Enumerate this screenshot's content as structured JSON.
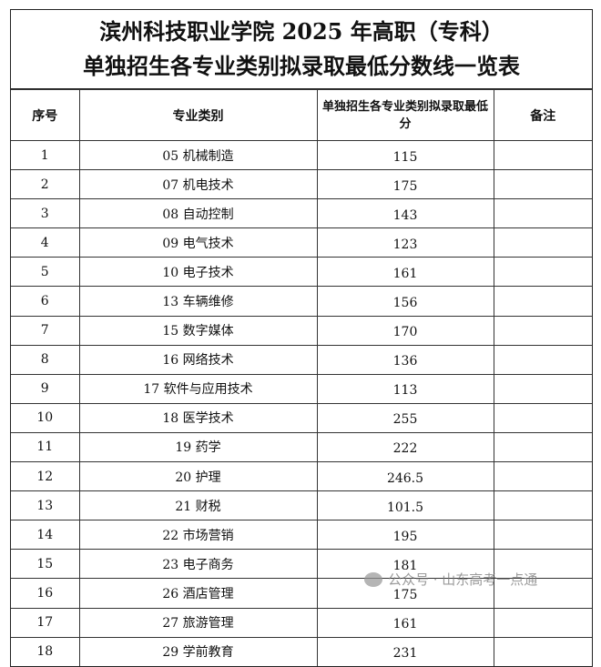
{
  "title_line1": "滨州科技职业学院 2025 年高职（专科）",
  "title_line2": "单独招生各专业类别拟录取最低分数线一览表",
  "headers": {
    "index": "序号",
    "category": "专业类别",
    "score": "单独招生各专业类别拟录取最低分",
    "note": "备注"
  },
  "rows": [
    {
      "index": "1",
      "category": "05 机械制造",
      "score": "115",
      "note": ""
    },
    {
      "index": "2",
      "category": "07 机电技术",
      "score": "175",
      "note": ""
    },
    {
      "index": "3",
      "category": "08 自动控制",
      "score": "143",
      "note": ""
    },
    {
      "index": "4",
      "category": "09 电气技术",
      "score": "123",
      "note": ""
    },
    {
      "index": "5",
      "category": "10 电子技术",
      "score": "161",
      "note": ""
    },
    {
      "index": "6",
      "category": "13 车辆维修",
      "score": "156",
      "note": ""
    },
    {
      "index": "7",
      "category": "15 数字媒体",
      "score": "170",
      "note": ""
    },
    {
      "index": "8",
      "category": "16 网络技术",
      "score": "136",
      "note": ""
    },
    {
      "index": "9",
      "category": "17 软件与应用技术",
      "score": "113",
      "note": ""
    },
    {
      "index": "10",
      "category": "18 医学技术",
      "score": "255",
      "note": ""
    },
    {
      "index": "11",
      "category": "19 药学",
      "score": "222",
      "note": ""
    },
    {
      "index": "12",
      "category": "20 护理",
      "score": "246.5",
      "note": ""
    },
    {
      "index": "13",
      "category": "21 财税",
      "score": "101.5",
      "note": ""
    },
    {
      "index": "14",
      "category": "22 市场营销",
      "score": "195",
      "note": ""
    },
    {
      "index": "15",
      "category": "23 电子商务",
      "score": "181",
      "note": ""
    },
    {
      "index": "16",
      "category": "26 酒店管理",
      "score": "175",
      "note": ""
    },
    {
      "index": "17",
      "category": "27 旅游管理",
      "score": "161",
      "note": ""
    },
    {
      "index": "18",
      "category": "29 学前教育",
      "score": "231",
      "note": ""
    }
  ],
  "watermark": "公众号 · 山东高考一点通"
}
